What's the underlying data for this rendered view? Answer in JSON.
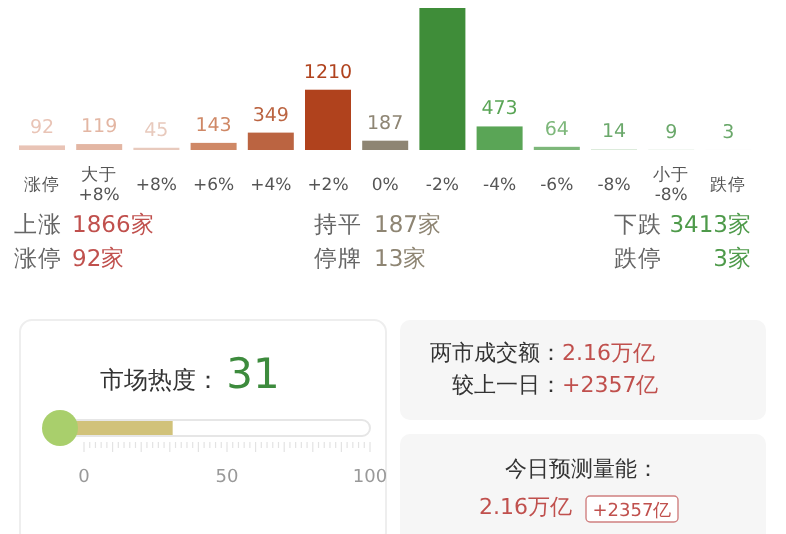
{
  "chart_data": [
    {
      "type": "bar",
      "categories": [
        "涨停",
        "大于\n+8%",
        "+8%",
        "+6%",
        "+4%",
        "+2%",
        "0%",
        "-2%",
        "-4%",
        "-6%",
        "-8%",
        "小于\n-8%",
        "跌停"
      ],
      "values": [
        92,
        119,
        45,
        143,
        349,
        1210,
        187,
        2850,
        473,
        64,
        14,
        9,
        3
      ],
      "value_labels": [
        "92",
        "119",
        "45",
        "143",
        "349",
        "1210",
        "187",
        null,
        "473",
        "64",
        "14",
        "9",
        "3"
      ],
      "colors": [
        "#e9c4b6",
        "#e3b6a3",
        "#e8cabd",
        "#cf8866",
        "#bb6441",
        "#b0421d",
        "#8e8573",
        "#3f8d39",
        "#5aa556",
        "#7db77a",
        "#cde2cc",
        "#e2eee2",
        "#ecf2ec"
      ]
    },
    {
      "type": "other",
      "annotations": [
        "上涨",
        "1866家",
        "持平",
        "187家",
        "下跌",
        "3413家",
        "涨停",
        "92家",
        "停牌",
        "13家",
        "跌停",
        "3家"
      ]
    },
    {
      "type": "bar",
      "orientation": "horizontal",
      "title": "市场热度：",
      "categories": [
        null
      ],
      "values": [
        31
      ],
      "annotations": [
        "31"
      ],
      "xlim": [
        0,
        100
      ],
      "xticks": [
        0,
        50,
        100
      ],
      "color": "#d1c27a"
    },
    {
      "type": "other",
      "annotations": [
        "两市成交额：",
        "2.16万亿",
        "较上一日：",
        "+2357亿",
        "今日预测量能：",
        "2.16万亿",
        "+2357亿"
      ]
    }
  ]
}
